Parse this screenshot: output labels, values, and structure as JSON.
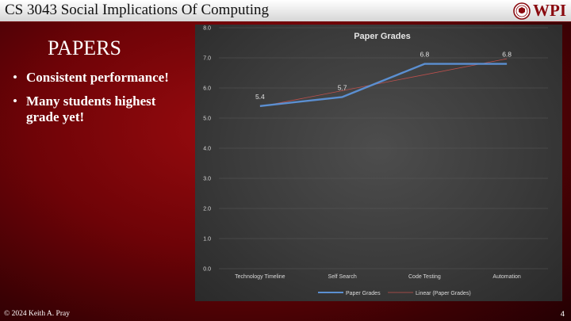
{
  "header": {
    "course_title": "CS 3043 Social Implications Of Computing",
    "logo_text": "WPI",
    "logo_alt": "wpi-seal"
  },
  "slide": {
    "heading": "PAPERS",
    "bullets": [
      "Consistent performance!",
      "Many students highest grade yet!"
    ],
    "bullet_glyph": "•"
  },
  "footer": {
    "copyright": "© 2024 Keith A. Pray",
    "page_number": "4"
  },
  "colors": {
    "series": "#5b8fd1",
    "trend": "#c0504d",
    "accent": "#8a0a0f"
  },
  "chart_data": {
    "type": "line",
    "title": "Paper Grades",
    "categories": [
      "Technology Timeline",
      "Self Search",
      "Code Testing",
      "Automation"
    ],
    "series": [
      {
        "name": "Paper Grades",
        "values": [
          5.4,
          5.7,
          6.8,
          6.8
        ]
      }
    ],
    "data_labels": [
      "5.4",
      "5.7",
      "6.8",
      "6.8"
    ],
    "trendline": {
      "name": "Linear (Paper Grades)",
      "type": "linear"
    },
    "ylim": [
      0,
      8
    ],
    "yticks": [
      "0.0",
      "1.0",
      "2.0",
      "3.0",
      "4.0",
      "5.0",
      "6.0",
      "7.0",
      "8.0"
    ],
    "xlabel": "",
    "ylabel": "",
    "grid": true,
    "legend": "bottom"
  }
}
